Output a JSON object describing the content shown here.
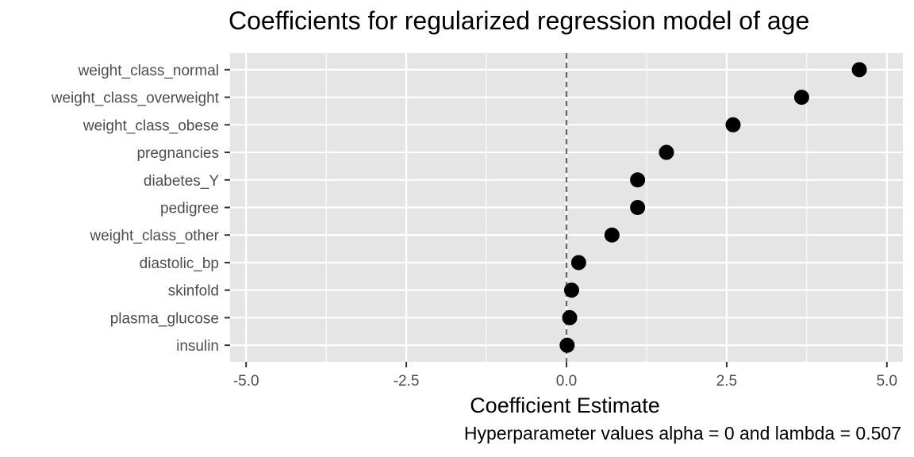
{
  "chart_data": {
    "type": "scatter",
    "title": "Coefficients for regularized regression model of age",
    "xlabel": "Coefficient Estimate",
    "ylabel": "",
    "caption": "Hyperparameter values alpha = 0 and lambda = 0.507",
    "xlim": [
      -5.25,
      5.25
    ],
    "x_ticks": [
      -5.0,
      -2.5,
      0.0,
      2.5,
      5.0
    ],
    "x_tick_labels": [
      "-5.0",
      "-2.5",
      "0.0",
      "2.5",
      "5.0"
    ],
    "reference_line": 0,
    "grid": true,
    "legend": "none",
    "categories": [
      "weight_class_normal",
      "weight_class_overweight",
      "weight_class_obese",
      "pregnancies",
      "diabetes_Y",
      "pedigree",
      "weight_class_other",
      "diastolic_bp",
      "skinfold",
      "plasma_glucose",
      "insulin"
    ],
    "values": [
      4.57,
      3.67,
      2.6,
      1.56,
      1.11,
      1.11,
      0.71,
      0.19,
      0.08,
      0.05,
      0.01
    ],
    "colors": {
      "panel_background": "#e5e5e5",
      "grid": "#ffffff",
      "point": "#000000",
      "reference_line": "#666666",
      "tick_text": "#4d4d4d"
    }
  }
}
